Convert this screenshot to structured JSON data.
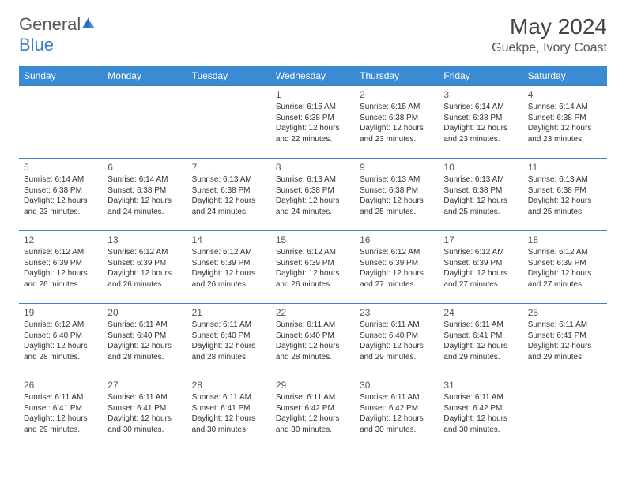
{
  "logo": {
    "text_gray": "General",
    "text_blue": "Blue"
  },
  "title": "May 2024",
  "location": "Guekpe, Ivory Coast",
  "colors": {
    "header_bg": "#3b8bd4",
    "header_text": "#ffffff",
    "border": "#3b7fc4",
    "logo_blue": "#3b7fc4",
    "text": "#333333"
  },
  "weekdays": [
    "Sunday",
    "Monday",
    "Tuesday",
    "Wednesday",
    "Thursday",
    "Friday",
    "Saturday"
  ],
  "weeks": [
    [
      null,
      null,
      null,
      {
        "n": "1",
        "sr": "6:15 AM",
        "ss": "6:38 PM",
        "d": "12 hours and 22 minutes."
      },
      {
        "n": "2",
        "sr": "6:15 AM",
        "ss": "6:38 PM",
        "d": "12 hours and 23 minutes."
      },
      {
        "n": "3",
        "sr": "6:14 AM",
        "ss": "6:38 PM",
        "d": "12 hours and 23 minutes."
      },
      {
        "n": "4",
        "sr": "6:14 AM",
        "ss": "6:38 PM",
        "d": "12 hours and 23 minutes."
      }
    ],
    [
      {
        "n": "5",
        "sr": "6:14 AM",
        "ss": "6:38 PM",
        "d": "12 hours and 23 minutes."
      },
      {
        "n": "6",
        "sr": "6:14 AM",
        "ss": "6:38 PM",
        "d": "12 hours and 24 minutes."
      },
      {
        "n": "7",
        "sr": "6:13 AM",
        "ss": "6:38 PM",
        "d": "12 hours and 24 minutes."
      },
      {
        "n": "8",
        "sr": "6:13 AM",
        "ss": "6:38 PM",
        "d": "12 hours and 24 minutes."
      },
      {
        "n": "9",
        "sr": "6:13 AM",
        "ss": "6:38 PM",
        "d": "12 hours and 25 minutes."
      },
      {
        "n": "10",
        "sr": "6:13 AM",
        "ss": "6:38 PM",
        "d": "12 hours and 25 minutes."
      },
      {
        "n": "11",
        "sr": "6:13 AM",
        "ss": "6:38 PM",
        "d": "12 hours and 25 minutes."
      }
    ],
    [
      {
        "n": "12",
        "sr": "6:12 AM",
        "ss": "6:39 PM",
        "d": "12 hours and 26 minutes."
      },
      {
        "n": "13",
        "sr": "6:12 AM",
        "ss": "6:39 PM",
        "d": "12 hours and 26 minutes."
      },
      {
        "n": "14",
        "sr": "6:12 AM",
        "ss": "6:39 PM",
        "d": "12 hours and 26 minutes."
      },
      {
        "n": "15",
        "sr": "6:12 AM",
        "ss": "6:39 PM",
        "d": "12 hours and 26 minutes."
      },
      {
        "n": "16",
        "sr": "6:12 AM",
        "ss": "6:39 PM",
        "d": "12 hours and 27 minutes."
      },
      {
        "n": "17",
        "sr": "6:12 AM",
        "ss": "6:39 PM",
        "d": "12 hours and 27 minutes."
      },
      {
        "n": "18",
        "sr": "6:12 AM",
        "ss": "6:39 PM",
        "d": "12 hours and 27 minutes."
      }
    ],
    [
      {
        "n": "19",
        "sr": "6:12 AM",
        "ss": "6:40 PM",
        "d": "12 hours and 28 minutes."
      },
      {
        "n": "20",
        "sr": "6:11 AM",
        "ss": "6:40 PM",
        "d": "12 hours and 28 minutes."
      },
      {
        "n": "21",
        "sr": "6:11 AM",
        "ss": "6:40 PM",
        "d": "12 hours and 28 minutes."
      },
      {
        "n": "22",
        "sr": "6:11 AM",
        "ss": "6:40 PM",
        "d": "12 hours and 28 minutes."
      },
      {
        "n": "23",
        "sr": "6:11 AM",
        "ss": "6:40 PM",
        "d": "12 hours and 29 minutes."
      },
      {
        "n": "24",
        "sr": "6:11 AM",
        "ss": "6:41 PM",
        "d": "12 hours and 29 minutes."
      },
      {
        "n": "25",
        "sr": "6:11 AM",
        "ss": "6:41 PM",
        "d": "12 hours and 29 minutes."
      }
    ],
    [
      {
        "n": "26",
        "sr": "6:11 AM",
        "ss": "6:41 PM",
        "d": "12 hours and 29 minutes."
      },
      {
        "n": "27",
        "sr": "6:11 AM",
        "ss": "6:41 PM",
        "d": "12 hours and 30 minutes."
      },
      {
        "n": "28",
        "sr": "6:11 AM",
        "ss": "6:41 PM",
        "d": "12 hours and 30 minutes."
      },
      {
        "n": "29",
        "sr": "6:11 AM",
        "ss": "6:42 PM",
        "d": "12 hours and 30 minutes."
      },
      {
        "n": "30",
        "sr": "6:11 AM",
        "ss": "6:42 PM",
        "d": "12 hours and 30 minutes."
      },
      {
        "n": "31",
        "sr": "6:11 AM",
        "ss": "6:42 PM",
        "d": "12 hours and 30 minutes."
      },
      null
    ]
  ],
  "labels": {
    "sunrise": "Sunrise:",
    "sunset": "Sunset:",
    "daylight": "Daylight:"
  }
}
